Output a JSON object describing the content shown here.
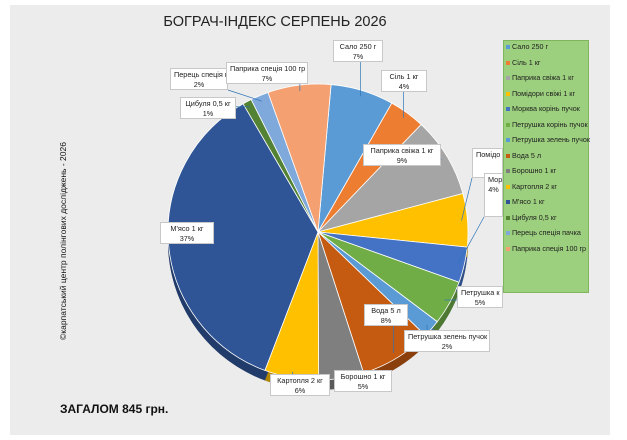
{
  "title": "БОГРАЧ-ІНДЕКС СЕРПЕНЬ 2026",
  "copyright": "©карпатський центр полінгових досліджень - 2026",
  "total": "ЗАГАЛОМ 845 грн.",
  "chart_data": {
    "type": "pie",
    "title": "БОГРАЧ-ІНДЕКС СЕРПЕНЬ 2026",
    "legend_position": "right",
    "slices": [
      {
        "label": "Сало 250 г",
        "value": 7,
        "pct_label": "7%",
        "color": "#5b9bd5"
      },
      {
        "label": "Сіль 1 кг",
        "value": 4,
        "pct_label": "4%",
        "color": "#ed7d31"
      },
      {
        "label": "Паприка свіжа 1 кг",
        "value": 9,
        "pct_label": "9%",
        "color": "#a5a5a5"
      },
      {
        "label": "Помідори свіжі 1 кг",
        "value": 6,
        "pct_label": "1",
        "color": "#ffc000"
      },
      {
        "label": "Морква корінь пучок",
        "value": 4,
        "pct_label": "4%",
        "color": "#4472c4"
      },
      {
        "label": "Петрушка корінь пучок",
        "value": 5,
        "pct_label": "5%",
        "color": "#70ad47"
      },
      {
        "label": "Петрушка зелень пучок",
        "value": 2,
        "pct_label": "2%",
        "color": "#5b9bd5"
      },
      {
        "label": "Вода 5 л",
        "value": 8,
        "pct_label": "8%",
        "color": "#c55a11"
      },
      {
        "label": "Борошно 1 кг",
        "value": 5,
        "pct_label": "5%",
        "color": "#7f7f7f"
      },
      {
        "label": "Картопля 2 кг",
        "value": 6,
        "pct_label": "6%",
        "color": "#ffc000"
      },
      {
        "label": "М'ясо 1 кг",
        "value": 37,
        "pct_label": "37%",
        "color": "#2f5597"
      },
      {
        "label": "Цибуля 0,5 кг",
        "value": 1,
        "pct_label": "1%",
        "color": "#548235"
      },
      {
        "label": "Перець спеція пачка",
        "value": 2,
        "pct_label": "2%",
        "color": "#7fa8db"
      },
      {
        "label": "Паприка спеція 100 гр",
        "value": 7,
        "pct_label": "7%",
        "color": "#f4a070"
      }
    ],
    "visible_labels": [
      {
        "name": "Сало 250 г",
        "pct": "7%"
      },
      {
        "name": "Сіль 1 кг",
        "pct": "4%"
      },
      {
        "name": "Паприка свіжа 1 кг",
        "pct": "9%"
      },
      {
        "name": "Помідо свіжі 1",
        "pct": ""
      },
      {
        "name": "Морква кор пучок",
        "pct": "4%"
      },
      {
        "name": "Петрушка к",
        "pct": "5%"
      },
      {
        "name": "Петрушка зелень пучок",
        "pct": "2%"
      },
      {
        "name": "Вода 5 л",
        "pct": "8%"
      },
      {
        "name": "Борошно 1 кг",
        "pct": "5%"
      },
      {
        "name": "Картопля 2 кг",
        "pct": "6%"
      },
      {
        "name": "М'ясо 1 кг",
        "pct": "37%"
      },
      {
        "name": "Цибуля 0,5 кг",
        "pct": "1%"
      },
      {
        "name": "Перець спеція п",
        "pct": "2%"
      },
      {
        "name": "Паприка спеція 100 гр",
        "pct": "7%"
      }
    ],
    "legend": [
      "Сало 250 г",
      "Сіль 1 кг",
      "Паприка свіжа 1 кг",
      "Помідори свіжі 1 кг",
      "Морква корінь пучок",
      "Петрушка корінь пучок",
      "Петрушка зелень пучок",
      "Вода 5 л",
      "Борошно 1 кг",
      "Картопля 2 кг",
      "М'ясо 1 кг",
      "Цибуля 0,5 кг",
      "Перець спеція пачка",
      "Паприка спеція 100 гр"
    ]
  }
}
